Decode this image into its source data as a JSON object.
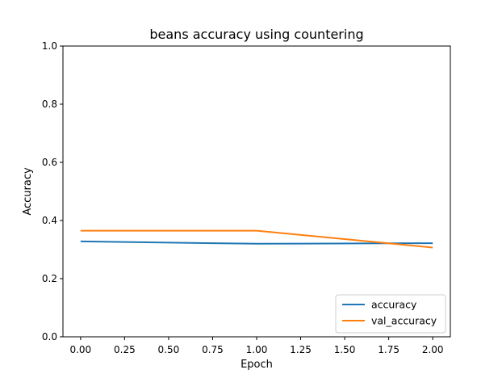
{
  "chart_data": {
    "type": "line",
    "title": "beans accuracy using countering",
    "xlabel": "Epoch",
    "ylabel": "Accuracy",
    "xlim": [
      -0.1,
      2.1
    ],
    "ylim": [
      0.0,
      1.0
    ],
    "xticks": [
      0.0,
      0.25,
      0.5,
      0.75,
      1.0,
      1.25,
      1.5,
      1.75,
      2.0
    ],
    "xtick_labels": [
      "0.00",
      "0.25",
      "0.50",
      "0.75",
      "1.00",
      "1.25",
      "1.50",
      "1.75",
      "2.00"
    ],
    "yticks": [
      0.0,
      0.2,
      0.4,
      0.6,
      0.8,
      1.0
    ],
    "ytick_labels": [
      "0.0",
      "0.2",
      "0.4",
      "0.6",
      "0.8",
      "1.0"
    ],
    "grid": false,
    "legend_position": "bottom-right",
    "x": [
      0,
      1,
      2
    ],
    "series": [
      {
        "name": "accuracy",
        "values": [
          0.328,
          0.32,
          0.322
        ],
        "color": "#1f77b4"
      },
      {
        "name": "val_accuracy",
        "values": [
          0.365,
          0.365,
          0.307
        ],
        "color": "#ff7f0e"
      }
    ]
  }
}
